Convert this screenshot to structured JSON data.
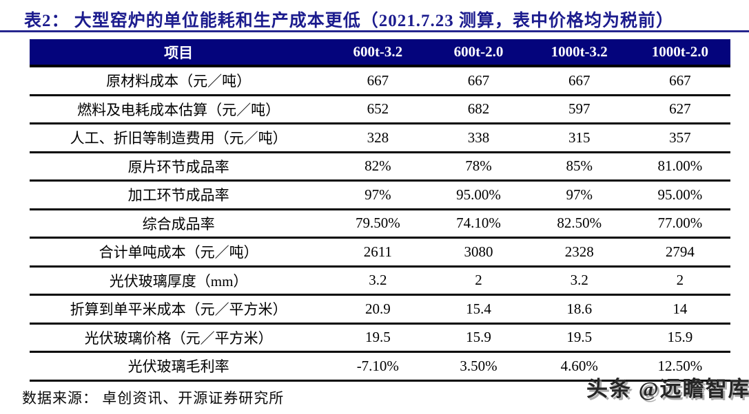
{
  "title": "表2：  大型窑炉的单位能耗和生产成本更低（2021.7.23 测算，表中价格均为税前）",
  "table": {
    "columns": [
      "项目",
      "600t-3.2",
      "600t-2.0",
      "1000t-3.2",
      "1000t-2.0"
    ],
    "rows": [
      {
        "label": "原材料成本（元／吨）",
        "values": [
          "667",
          "667",
          "667",
          "667"
        ]
      },
      {
        "label": "燃料及电耗成本估算（元／吨）",
        "values": [
          "652",
          "682",
          "597",
          "627"
        ]
      },
      {
        "label": "人工、折旧等制造费用（元／吨）",
        "values": [
          "328",
          "338",
          "315",
          "357"
        ]
      },
      {
        "label": "原片环节成品率",
        "values": [
          "82%",
          "78%",
          "85%",
          "81.00%"
        ]
      },
      {
        "label": "加工环节成品率",
        "values": [
          "97%",
          "95.00%",
          "97%",
          "95.00%"
        ]
      },
      {
        "label": "综合成品率",
        "values": [
          "79.50%",
          "74.10%",
          "82.50%",
          "77.00%"
        ]
      },
      {
        "label": "合计单吨成本（元／吨）",
        "values": [
          "2611",
          "3080",
          "2328",
          "2794"
        ]
      },
      {
        "label": "光伏玻璃厚度（mm）",
        "values": [
          "3.2",
          "2",
          "3.2",
          "2"
        ]
      },
      {
        "label": "折算到单平米成本（元／平方米）",
        "values": [
          "20.9",
          "15.4",
          "18.6",
          "14"
        ]
      },
      {
        "label": "光伏玻璃价格（元／平方米）",
        "values": [
          "19.5",
          "15.9",
          "19.5",
          "15.9"
        ]
      },
      {
        "label": "光伏玻璃毛利率",
        "values": [
          "-7.10%",
          "3.50%",
          "4.60%",
          "12.50%"
        ]
      }
    ]
  },
  "footer": {
    "source": "数据来源：  卓创资讯、开源证券研究所"
  },
  "watermark": {
    "text": "头条 @远瞻智库"
  },
  "colors": {
    "title": "#1c1c8e",
    "title_rule": "#26268e",
    "header_bg": "#04047c",
    "header_text": "#ffffff",
    "body_text": "#000000",
    "row_line": "#000000",
    "watermark": "#262626"
  }
}
